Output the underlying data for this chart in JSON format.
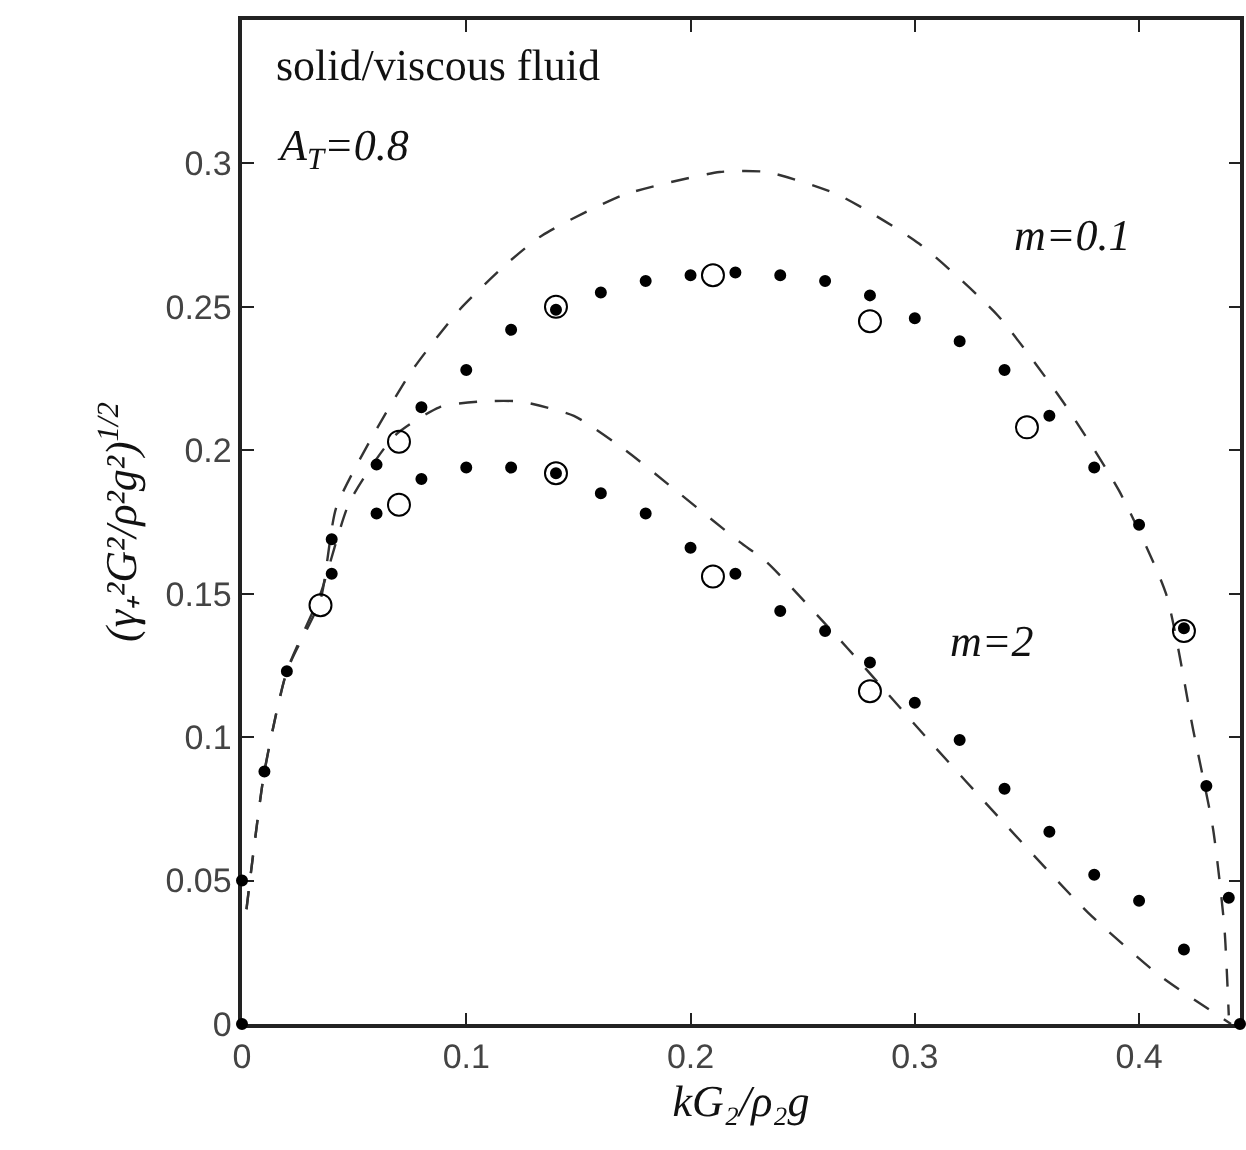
{
  "chart_data": {
    "type": "line",
    "xlabel": "kG₂/ρ₂g",
    "ylabel": "(γ₊²G²/ρ²g²)$^{1/2}$",
    "annotations": [
      "solid/viscous fluid",
      "A$_{T}$=0.8",
      "m=0.1",
      "m=2"
    ],
    "xlim": [
      0,
      0.445
    ],
    "ylim": [
      0,
      0.35
    ],
    "xticks": [
      0,
      0.1,
      0.2,
      0.3,
      0.4
    ],
    "yticks": [
      0,
      0.05,
      0.1,
      0.15,
      0.2,
      0.25,
      0.3
    ],
    "grid": false,
    "series": [
      {
        "color": "#333333",
        "line_style": "dashed",
        "marker": "none",
        "x": [
          0.002,
          0.01,
          0.02,
          0.035,
          0.042,
          0.059,
          0.076,
          0.097,
          0.118,
          0.134,
          0.17,
          0.213,
          0.234,
          0.266,
          0.302,
          0.337,
          0.366,
          0.391,
          0.412,
          0.424,
          0.433,
          0.438,
          0.44
        ],
        "values": [
          0.04,
          0.088,
          0.123,
          0.148,
          0.18,
          0.206,
          0.228,
          0.249,
          0.265,
          0.275,
          0.289,
          0.297,
          0.297,
          0.289,
          0.272,
          0.247,
          0.217,
          0.186,
          0.15,
          0.103,
          0.068,
          0.034,
          0.003
        ]
      },
      {
        "color": "#333333",
        "line_style": "dashed",
        "marker": "none",
        "x": [
          0.002,
          0.01,
          0.02,
          0.035,
          0.048,
          0.068,
          0.088,
          0.106,
          0.124,
          0.148,
          0.171,
          0.195,
          0.222,
          0.234,
          0.27,
          0.305,
          0.341,
          0.377,
          0.409,
          0.441
        ],
        "values": [
          0.04,
          0.088,
          0.123,
          0.15,
          0.182,
          0.205,
          0.215,
          0.217,
          0.217,
          0.212,
          0.2,
          0.185,
          0.168,
          0.161,
          0.131,
          0.1,
          0.069,
          0.039,
          0.017,
          0
        ]
      },
      {
        "type": "scatter",
        "color": "#000000",
        "marker": "circle",
        "x": [
          0,
          0,
          0.01,
          0.02,
          0.04,
          0.06,
          0.08,
          0.1,
          0.12,
          0.14,
          0.16,
          0.18,
          0.2,
          0.22,
          0.24,
          0.26,
          0.28,
          0.3,
          0.32,
          0.34,
          0.36,
          0.38,
          0.4,
          0.42,
          0.43,
          0.44,
          0.445
        ],
        "values": [
          0,
          0.05,
          0.088,
          0.123,
          0.169,
          0.195,
          0.215,
          0.228,
          0.242,
          0.249,
          0.255,
          0.259,
          0.261,
          0.262,
          0.261,
          0.259,
          0.254,
          0.246,
          0.238,
          0.228,
          0.212,
          0.194,
          0.174,
          0.138,
          0.083,
          0.044,
          0
        ]
      },
      {
        "type": "scatter",
        "color": "#000000",
        "marker": "circle",
        "x": [
          0.04,
          0.06,
          0.08,
          0.1,
          0.12,
          0.14,
          0.16,
          0.18,
          0.2,
          0.22,
          0.24,
          0.26,
          0.28,
          0.3,
          0.32,
          0.34,
          0.36,
          0.38,
          0.4,
          0.42
        ],
        "values": [
          0.157,
          0.178,
          0.19,
          0.194,
          0.194,
          0.192,
          0.185,
          0.178,
          0.166,
          0.157,
          0.144,
          0.137,
          0.126,
          0.112,
          0.099,
          0.082,
          0.067,
          0.052,
          0.043,
          0.026
        ]
      },
      {
        "type": "scatter",
        "color": "#000000",
        "marker": "circle-open",
        "x": [
          0.035,
          0.07,
          0.07,
          0.14,
          0.14,
          0.21,
          0.21,
          0.28,
          0.28,
          0.35,
          0.42
        ],
        "values": [
          0.146,
          0.203,
          0.181,
          0.25,
          0.192,
          0.261,
          0.156,
          0.245,
          0.116,
          0.208,
          0.137
        ]
      }
    ]
  }
}
